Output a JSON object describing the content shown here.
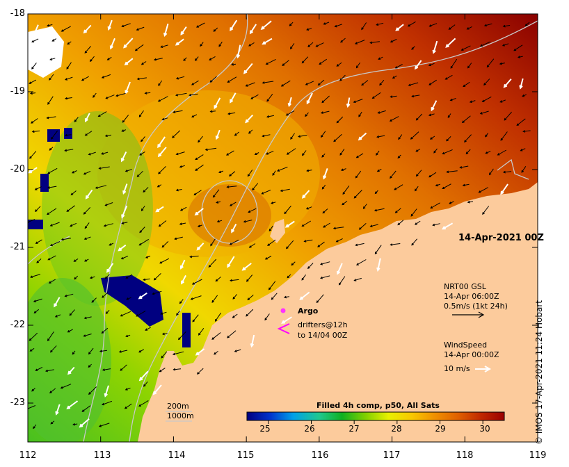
{
  "map": {
    "lat_ticks": [
      "-18",
      "-19",
      "-20",
      "-21",
      "-22",
      "-23"
    ],
    "lon_ticks": [
      "112",
      "113",
      "114",
      "115",
      "116",
      "117",
      "118",
      "119"
    ],
    "lat_range": [
      -23.5,
      -18
    ],
    "lon_range": [
      112,
      119
    ],
    "timestamp": "14-Apr-2021 00Z",
    "land_color": "#fccb9c",
    "no_data_color": "#ffffff"
  },
  "legend": {
    "argo_label": "Argo",
    "argo_color": "#ff33ff",
    "drifter_line1": "drifters@12h",
    "drifter_line2": "to 14/04 00Z",
    "drifter_color": "#ff00ff",
    "current_line1": "NRT00 GSL",
    "current_line2": "14-Apr 06:00Z",
    "current_line3": "0.5m/s (1kt 24h)",
    "wind_line1": "WindSpeed",
    "wind_line2": "14-Apr 00:00Z",
    "wind_line3": "10 m/s",
    "contour_200": "200m",
    "contour_1000": "1000m"
  },
  "colorbar": {
    "title": "Filled 4h comp, p50, All Sats",
    "ticks": [
      "25",
      "26",
      "27",
      "28",
      "29",
      "30"
    ],
    "range": [
      24.5,
      30.5
    ],
    "colors": [
      "#000080",
      "#0033cc",
      "#00a0e8",
      "#20c890",
      "#10b020",
      "#80d000",
      "#e8f000",
      "#f8c800",
      "#f09000",
      "#e06000",
      "#c02800",
      "#9a0000"
    ]
  },
  "credit": "© IMOS 17-Apr-2021 11:24 Hobart"
}
